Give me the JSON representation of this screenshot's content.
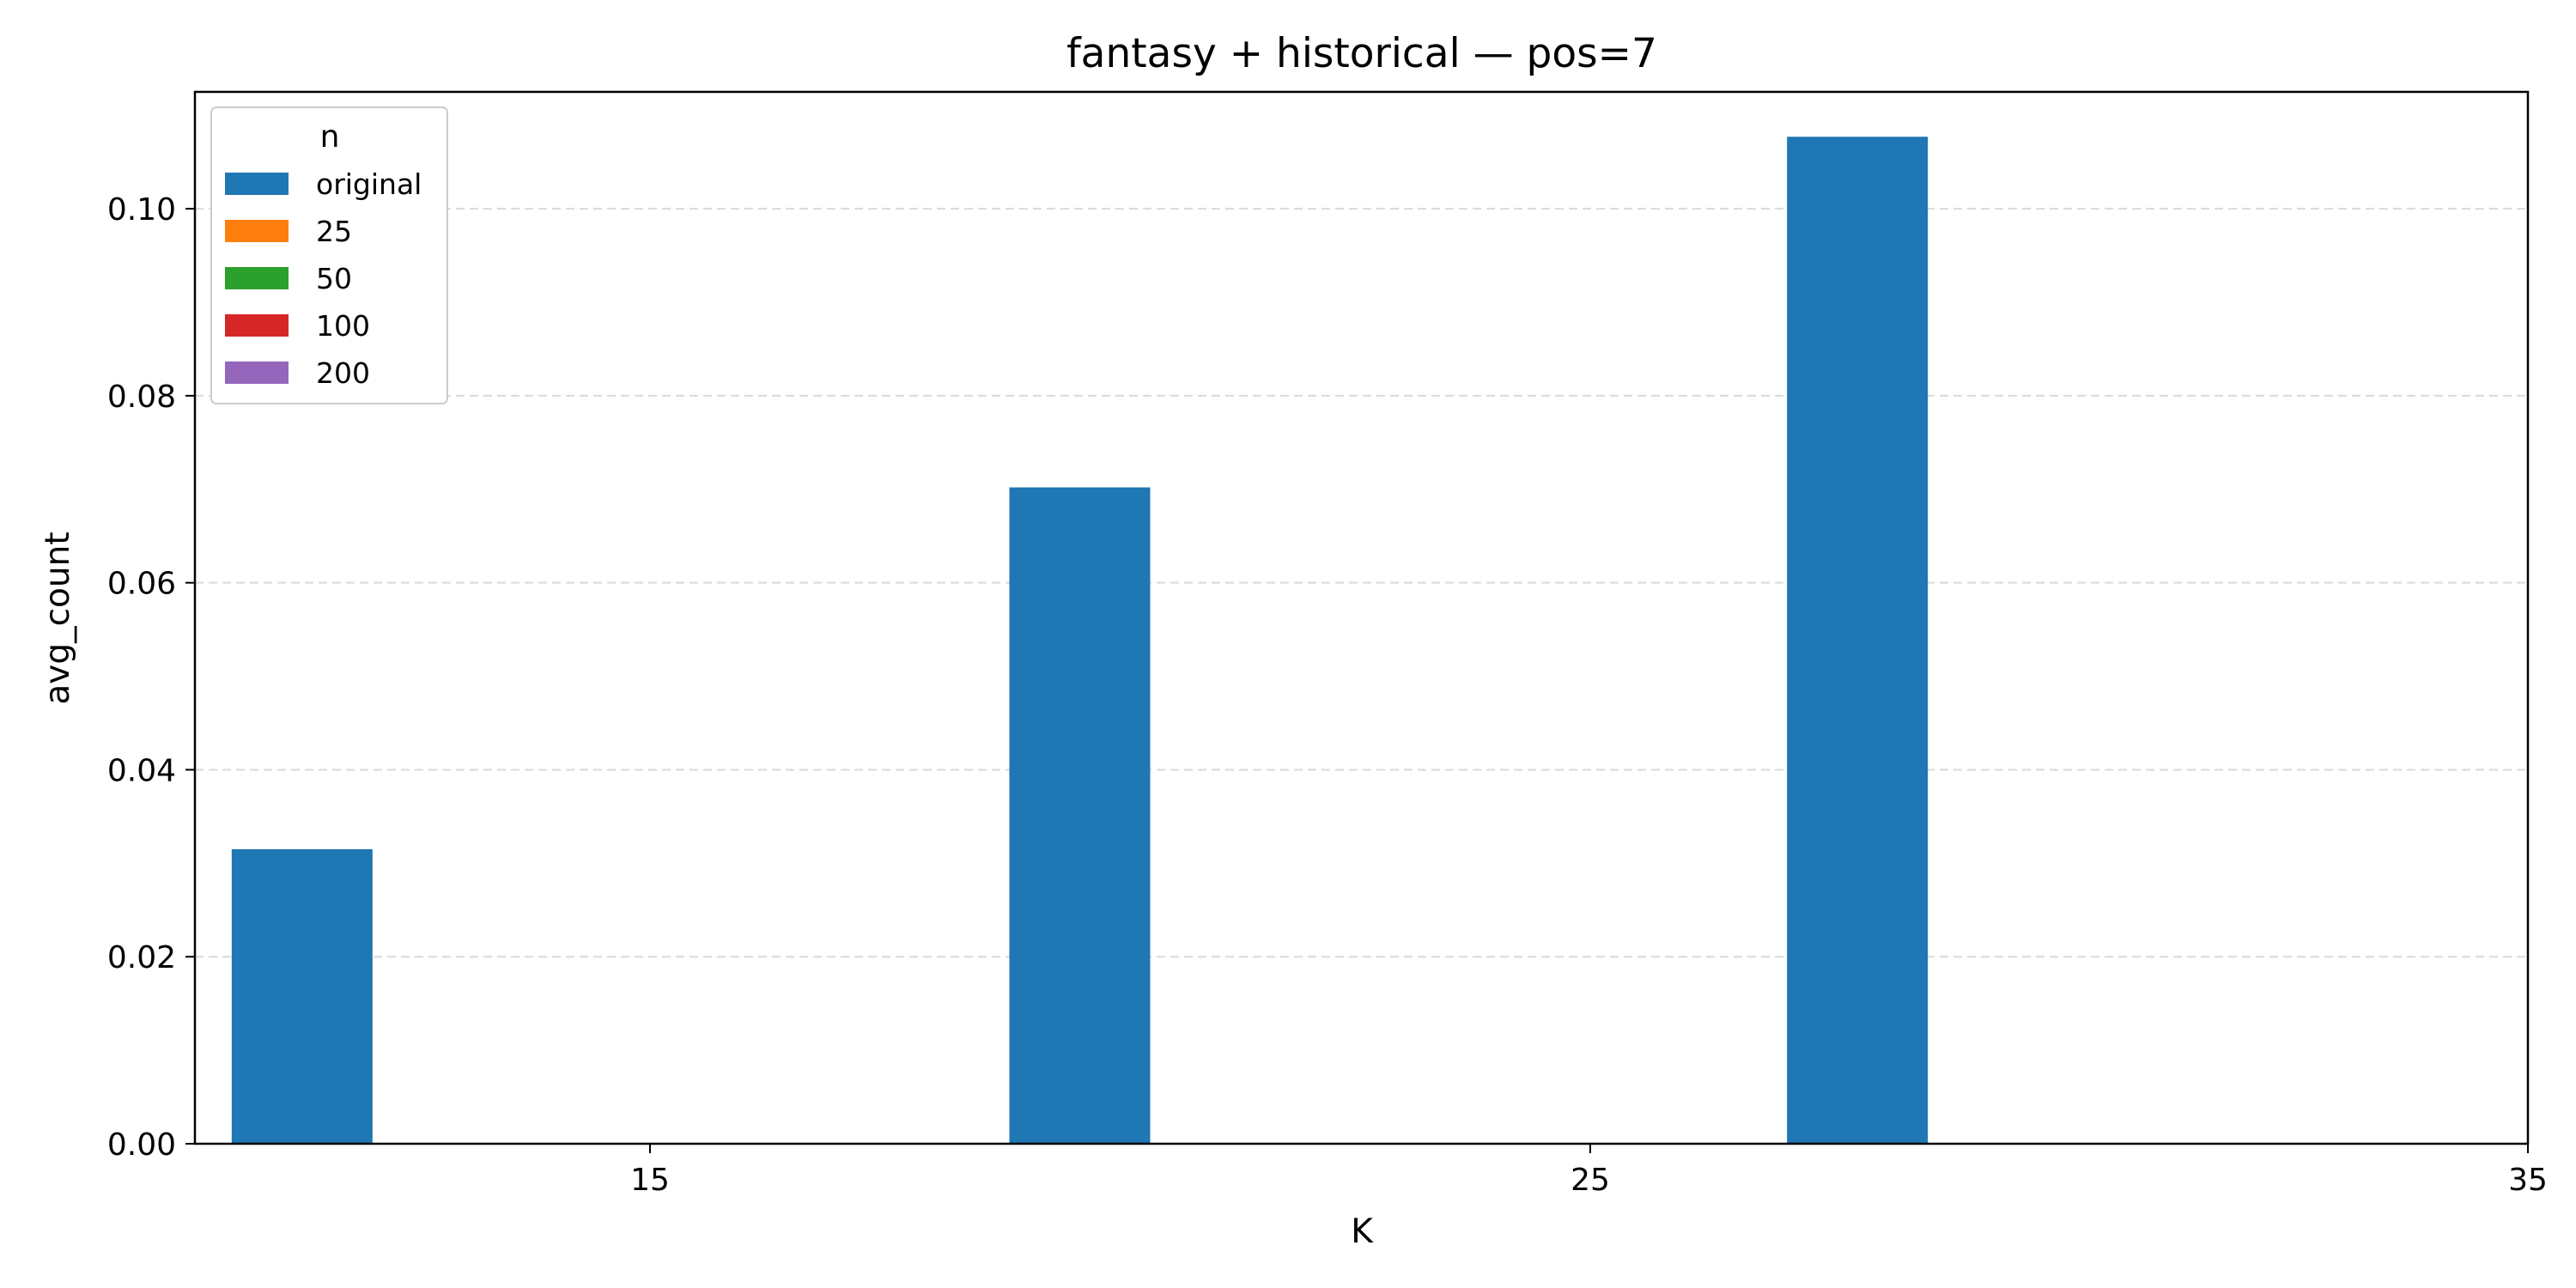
{
  "chart_data": {
    "type": "bar",
    "title": "fantasy + historical — pos=7",
    "xlabel": "K",
    "ylabel": "avg_count",
    "x_ticks": [
      "15",
      "25",
      "35"
    ],
    "y_ticks": [
      "0.00",
      "0.02",
      "0.04",
      "0.06",
      "0.08",
      "0.10"
    ],
    "ylim": [
      0,
      0.1125
    ],
    "grid": "horizontal dashed",
    "legend": {
      "title": "n",
      "placement": "top-left",
      "entries": [
        "original",
        "25",
        "50",
        "100",
        "200"
      ]
    },
    "categories": [
      "15",
      "25",
      "35"
    ],
    "series": [
      {
        "name": "original",
        "color": "#1f77b4",
        "values": [
          0.0315,
          0.0702,
          0.1077
        ]
      },
      {
        "name": "25",
        "color": "#ff7f0e",
        "values": [
          0,
          0,
          0
        ]
      },
      {
        "name": "50",
        "color": "#2ca02c",
        "values": [
          0,
          0,
          0
        ]
      },
      {
        "name": "100",
        "color": "#d62728",
        "values": [
          0,
          0,
          0
        ]
      },
      {
        "name": "200",
        "color": "#9467bd",
        "values": [
          0,
          0,
          0
        ]
      }
    ]
  }
}
